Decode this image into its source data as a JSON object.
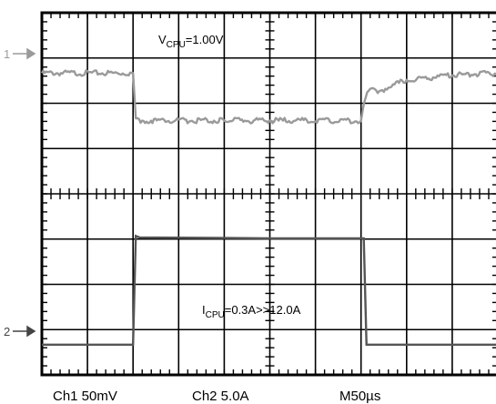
{
  "chart_data": {
    "type": "line",
    "title": "",
    "x": {
      "unit": "µs",
      "divisions": 10,
      "per_division": 50,
      "range": [
        0,
        500
      ]
    },
    "grid": true,
    "series": [
      {
        "channel": 1,
        "marker_label": "1",
        "annotation": {
          "base": "V",
          "subscript": "CPU",
          "rest": "=1.00V"
        },
        "scale": "50mV",
        "color": "#9a9a9a",
        "y_unit": "divisions",
        "points": [
          [
            0,
            0
          ],
          [
            100,
            0
          ],
          [
            103,
            -1.0
          ],
          [
            110,
            -1.05
          ],
          [
            200,
            -1.05
          ],
          [
            250,
            -1.05
          ],
          [
            350,
            -1.05
          ],
          [
            355,
            -0.55
          ],
          [
            360,
            -0.35
          ],
          [
            370,
            -0.4
          ],
          [
            400,
            -0.15
          ],
          [
            450,
            -0.05
          ],
          [
            500,
            0
          ]
        ]
      },
      {
        "channel": 2,
        "marker_label": "2",
        "annotation": {
          "base": "I",
          "subscript": "CPU",
          "rest": "=0.3A>>12.0A"
        },
        "scale": "5.0A",
        "color": "#555555",
        "y_unit": "divisions",
        "points": [
          [
            0,
            0
          ],
          [
            100,
            0
          ],
          [
            103,
            2.4
          ],
          [
            107,
            2.37
          ],
          [
            250,
            2.35
          ],
          [
            353,
            2.35
          ],
          [
            356,
            0
          ],
          [
            500,
            0
          ]
        ]
      }
    ]
  },
  "footer": {
    "ch1_setting": "Ch1 50mV",
    "ch2_setting": "Ch2 5.0A",
    "timebase": "M50µs"
  }
}
